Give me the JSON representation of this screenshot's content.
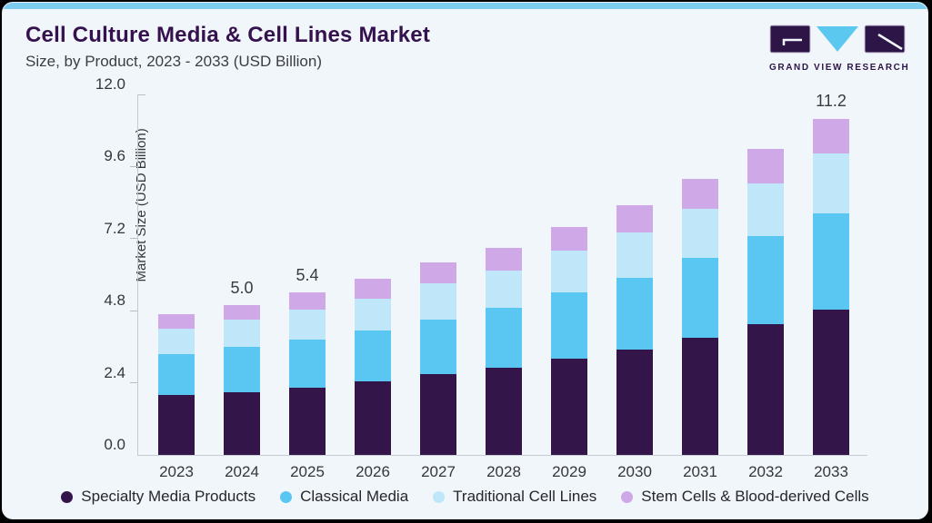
{
  "header": {
    "title": "Cell Culture Media & Cell Lines Market",
    "subtitle": "Size, by Product, 2023 - 2033 (USD Billion)"
  },
  "logo": {
    "text": "GRAND VIEW RESEARCH",
    "dark_color": "#2e1547",
    "light_color": "#5bc8f0"
  },
  "colors": {
    "card_bg": "#f0f6fa",
    "top_strip": "#7dcdf1",
    "axis_line": "#c3cad1",
    "axis_text": "#35363c",
    "title_text": "#35114e"
  },
  "chart_data": {
    "type": "bar",
    "stacked": true,
    "title": "Cell Culture Media & Cell Lines Market Size, by Product, 2023 - 2033 (USD Billion)",
    "xlabel": "",
    "ylabel": "Market Size (USD Billion)",
    "ylim": [
      0,
      12
    ],
    "yticks": [
      0.0,
      2.4,
      4.8,
      7.2,
      9.6,
      12.0
    ],
    "grid": false,
    "legend_position": "bottom",
    "categories": [
      "2023",
      "2024",
      "2025",
      "2026",
      "2027",
      "2028",
      "2029",
      "2030",
      "2031",
      "2032",
      "2033"
    ],
    "series": [
      {
        "name": "Specialty Media Products",
        "color": "#331549",
        "values": [
          2.0,
          2.1,
          2.25,
          2.45,
          2.7,
          2.9,
          3.2,
          3.5,
          3.9,
          4.35,
          4.85
        ]
      },
      {
        "name": "Classical Media",
        "color": "#5ac6f2",
        "values": [
          1.35,
          1.5,
          1.6,
          1.7,
          1.8,
          2.0,
          2.2,
          2.4,
          2.65,
          2.95,
          3.2
        ]
      },
      {
        "name": "Traditional Cell Lines",
        "color": "#c0e7f9",
        "values": [
          0.85,
          0.9,
          1.0,
          1.05,
          1.2,
          1.25,
          1.4,
          1.5,
          1.65,
          1.75,
          2.0
        ]
      },
      {
        "name": "Stem Cells & Blood-derived Cells",
        "color": "#cfa8e8",
        "values": [
          0.5,
          0.5,
          0.55,
          0.65,
          0.7,
          0.75,
          0.8,
          0.9,
          1.0,
          1.15,
          1.15
        ]
      }
    ],
    "totals": [
      4.7,
      5.0,
      5.4,
      5.9,
      6.4,
      6.9,
      7.6,
      8.3,
      9.2,
      10.2,
      11.2
    ],
    "bar_labels": {
      "2024": "5.0",
      "2025": "5.4",
      "2033": "11.2"
    }
  }
}
